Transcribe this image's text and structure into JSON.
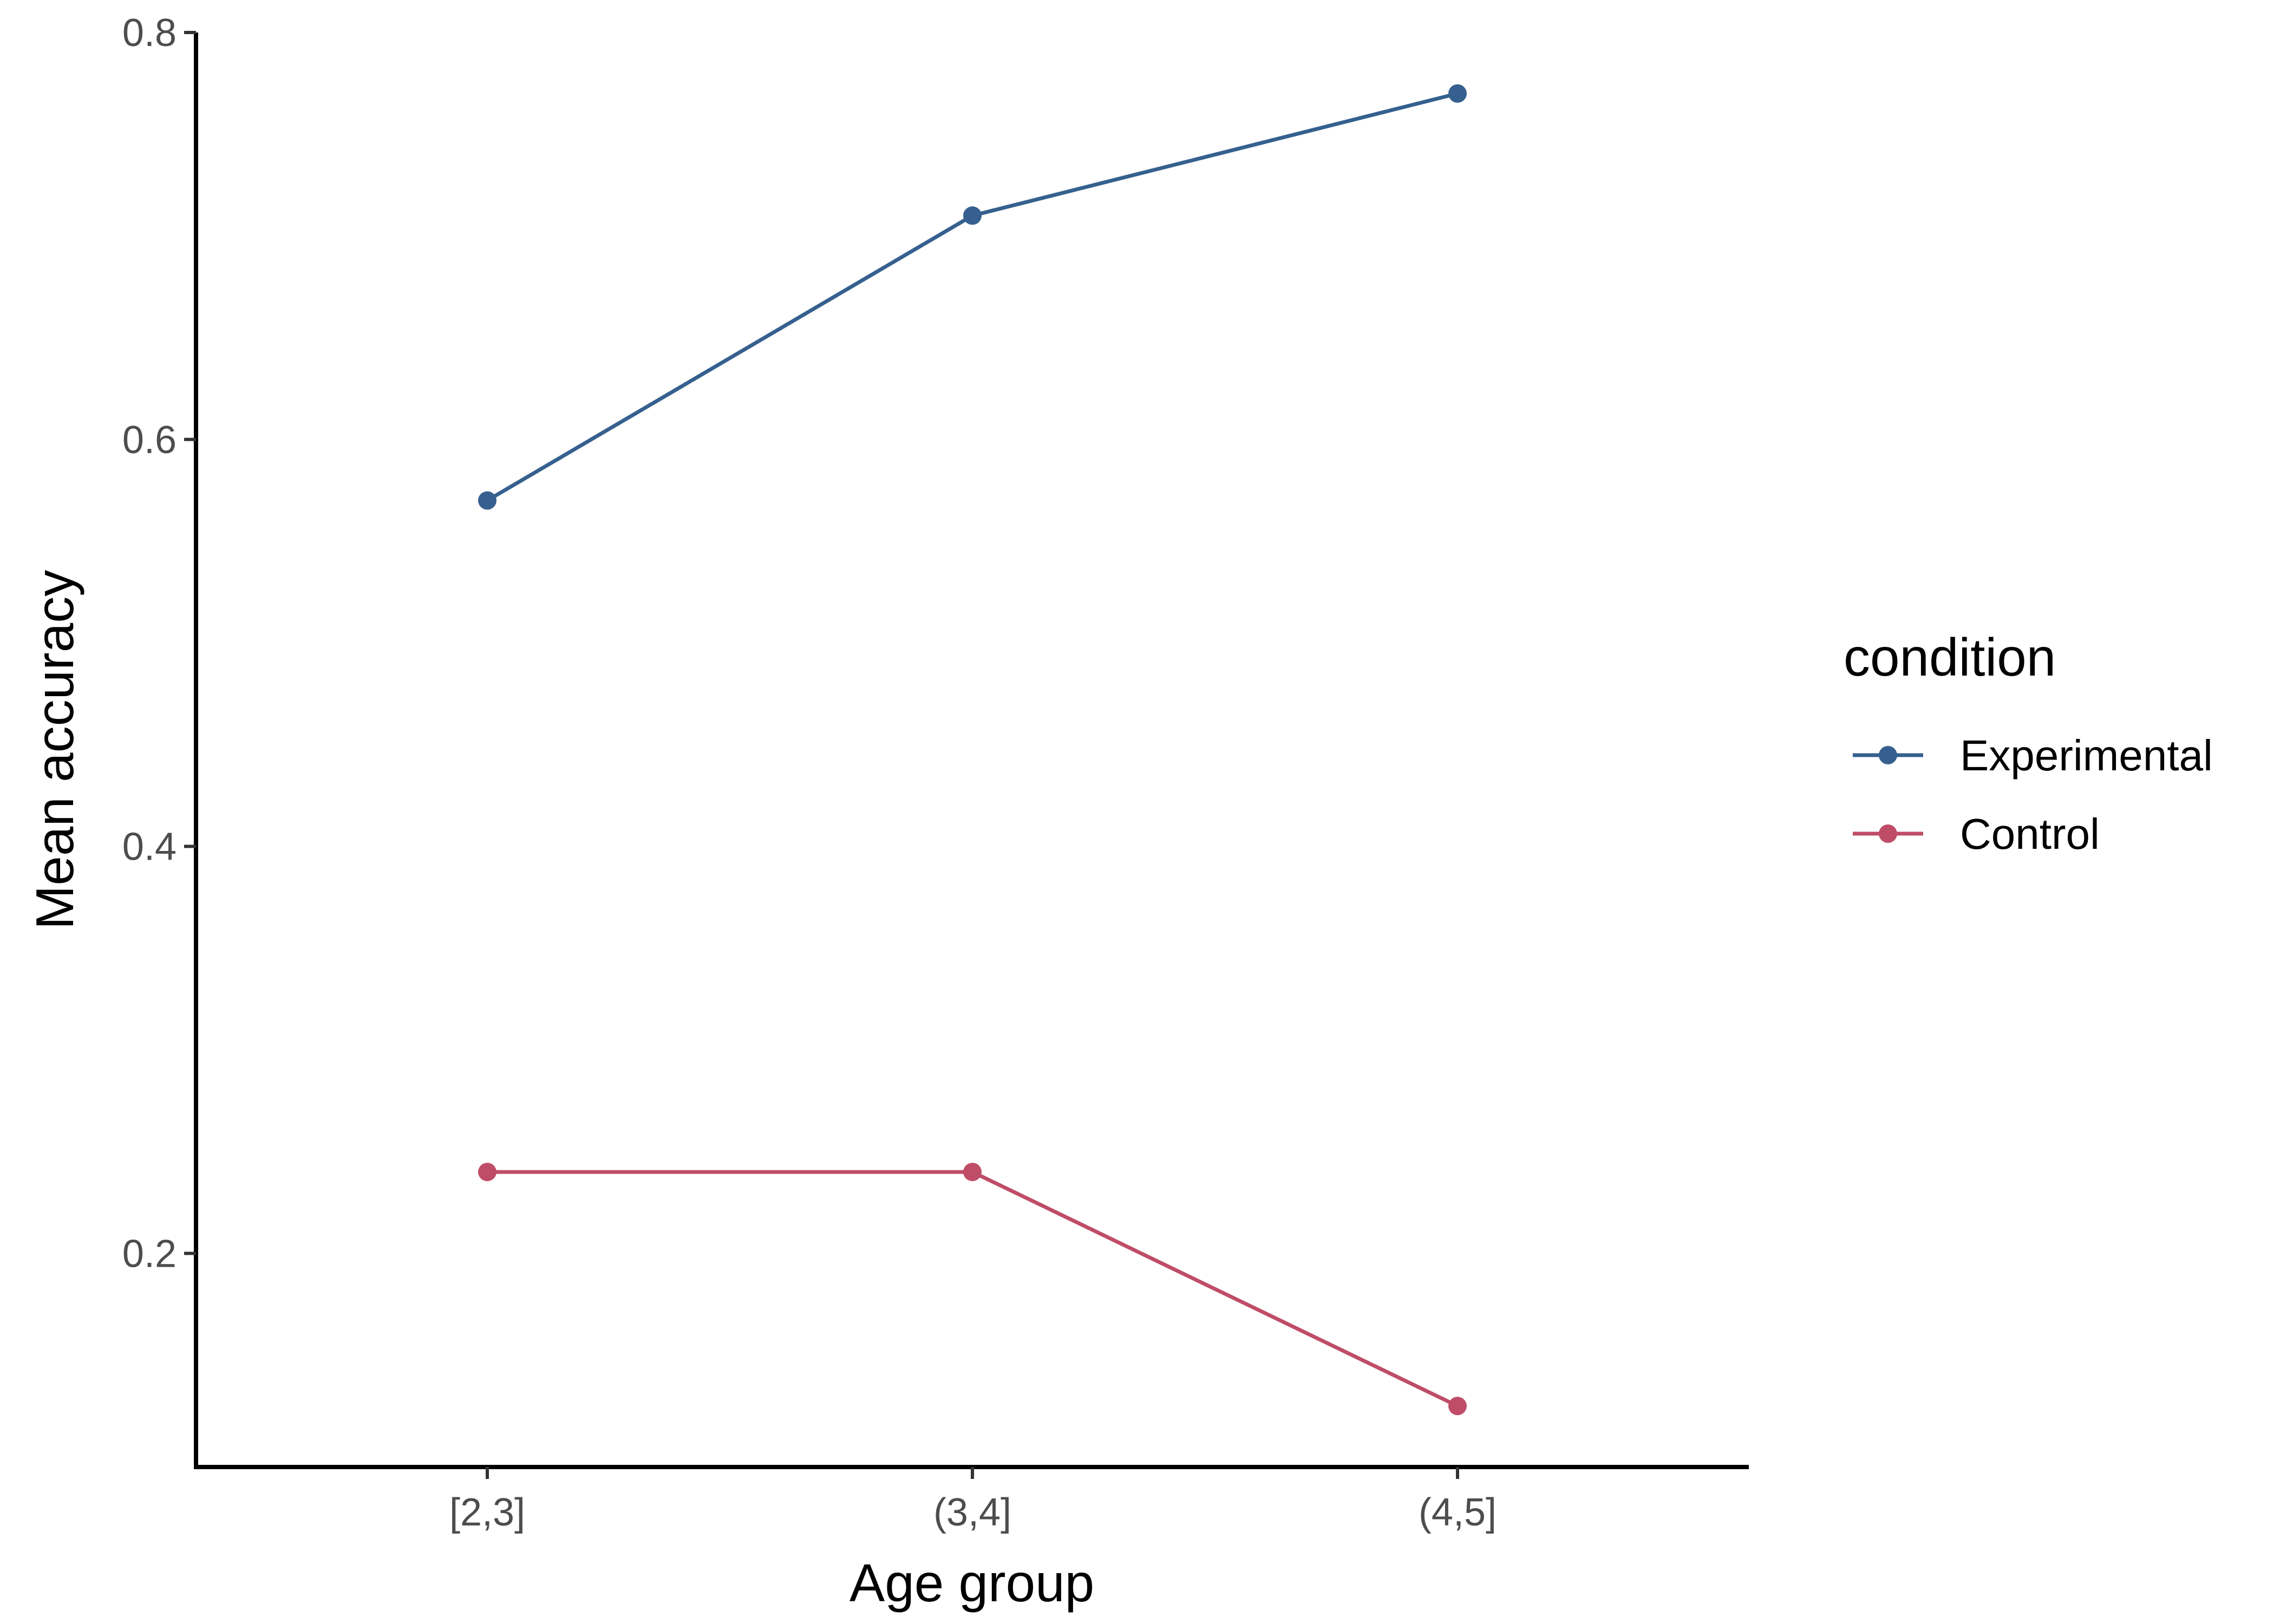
{
  "chart_data": {
    "type": "line",
    "title": "",
    "xlabel": "Age group",
    "ylabel": "Mean accuracy",
    "categories": [
      "[2,3]",
      "(3,4]",
      "(4,5]"
    ],
    "yticks": [
      "0.2",
      "0.4",
      "0.6",
      "0.8"
    ],
    "ylim": [
      0.095,
      0.8
    ],
    "grid": false,
    "legend": {
      "title": "condition",
      "position": "right"
    },
    "series": [
      {
        "name": "Experimental",
        "color": "#35608F",
        "values": [
          0.57,
          0.71,
          0.77
        ]
      },
      {
        "name": "Control",
        "color": "#BF4D67",
        "values": [
          0.24,
          0.24,
          0.125
        ]
      }
    ]
  }
}
